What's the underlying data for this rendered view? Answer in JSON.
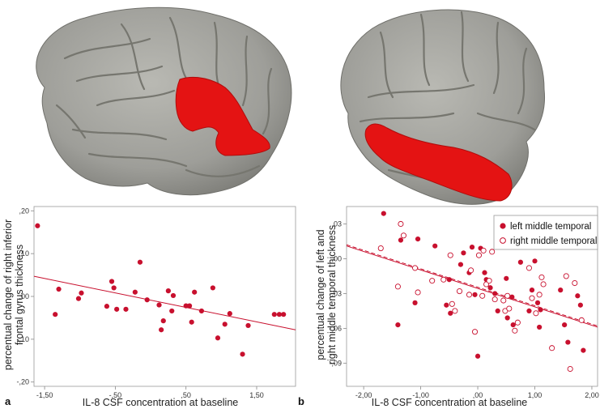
{
  "colors": {
    "accent": "#c8102e",
    "brain": "#9c9c97",
    "region": "#e41313"
  },
  "figure": {
    "panel_a_label": "a",
    "panel_b_label": "b",
    "brain_left_icon": "brain-lateral-right-hemisphere-inferior-frontal-highlight",
    "brain_right_icon": "brain-lateral-left-hemisphere-middle-temporal-highlight"
  },
  "chart_data": [
    {
      "type": "scatter",
      "panel": "a",
      "xlabel": "IL-8 CSF concentration at baseline",
      "ylabel": "percentual change of right inferior frontal gyrus thickness",
      "xlim": [
        -1.65,
        2.05
      ],
      "ylim": [
        -0.21,
        0.21
      ],
      "xticks": [
        -1.5,
        -0.5,
        0.5,
        1.5
      ],
      "xtick_labels": [
        "-1,50",
        "-,50",
        ",50",
        "1,50"
      ],
      "yticks": [
        0.2,
        0.1,
        0.0,
        -0.1,
        -0.2
      ],
      "ytick_labels": [
        ",20",
        ",10",
        ",00",
        "-,10",
        "-,20"
      ],
      "series": [
        {
          "marker": "filled",
          "x": [
            -1.6,
            -1.35,
            -1.3,
            -1.02,
            -0.98,
            -0.62,
            -0.55,
            -0.52,
            -0.48,
            -0.35,
            -0.22,
            -0.15,
            -0.05,
            0.12,
            0.15,
            0.18,
            0.25,
            0.3,
            0.32,
            0.5,
            0.55,
            0.58,
            0.62,
            0.72,
            0.88,
            0.95,
            1.05,
            1.12,
            1.3,
            1.38,
            1.75,
            1.82,
            1.88
          ],
          "y": [
            0.165,
            -0.042,
            0.017,
            -0.005,
            0.008,
            -0.023,
            0.035,
            0.02,
            -0.03,
            -0.03,
            0.01,
            0.08,
            -0.008,
            -0.02,
            -0.078,
            -0.057,
            0.013,
            -0.034,
            0.002,
            -0.022,
            -0.022,
            -0.06,
            0.01,
            -0.034,
            0.02,
            -0.097,
            -0.065,
            -0.04,
            -0.135,
            -0.068,
            -0.042,
            -0.042,
            -0.042
          ]
        }
      ],
      "fit_line": {
        "x": [
          -1.65,
          2.05
        ],
        "y": [
          0.047,
          -0.078
        ]
      }
    },
    {
      "type": "scatter",
      "panel": "b",
      "xlabel": "IL-8 CSF concentration at baseline",
      "ylabel": "percentual change of left and right middle temporal thickness",
      "xlim": [
        -2.3,
        2.1
      ],
      "ylim": [
        -0.11,
        0.045
      ],
      "xticks": [
        -2.0,
        -1.0,
        0.0,
        1.0,
        2.0
      ],
      "xtick_labels": [
        "-2,00",
        "-1,00",
        ",00",
        "1,00",
        "2,00"
      ],
      "yticks": [
        0.03,
        0.0,
        -0.03,
        -0.06,
        -0.09
      ],
      "ytick_labels": [
        ",03",
        ",00",
        "-,03",
        "-,06",
        "-,09"
      ],
      "legend": {
        "position": "top-right"
      },
      "series": [
        {
          "name": "left middle temporal",
          "marker": "filled",
          "x": [
            -1.65,
            -1.4,
            -1.35,
            -1.1,
            -1.05,
            -0.75,
            -0.55,
            -0.5,
            -0.48,
            -0.3,
            -0.25,
            -0.15,
            -0.1,
            -0.05,
            0.0,
            0.05,
            0.12,
            0.15,
            0.22,
            0.3,
            0.35,
            0.5,
            0.52,
            0.6,
            0.62,
            0.75,
            0.9,
            0.95,
            1.0,
            1.05,
            1.08,
            1.1,
            1.45,
            1.52,
            1.58,
            1.75,
            1.8,
            1.85
          ],
          "y": [
            0.039,
            -0.057,
            0.016,
            -0.038,
            0.017,
            0.011,
            -0.04,
            -0.018,
            -0.047,
            -0.005,
            0.005,
            -0.012,
            0.01,
            -0.031,
            -0.084,
            0.009,
            -0.012,
            -0.018,
            -0.025,
            -0.03,
            -0.045,
            -0.017,
            -0.051,
            -0.033,
            -0.057,
            -0.003,
            -0.045,
            -0.027,
            -0.002,
            -0.038,
            -0.059,
            -0.044,
            -0.027,
            -0.057,
            -0.072,
            -0.032,
            -0.04,
            -0.079
          ]
        },
        {
          "name": "right middle temporal",
          "marker": "open",
          "x": [
            -1.7,
            -1.4,
            -1.35,
            -1.3,
            -1.1,
            -1.05,
            -0.8,
            -0.6,
            -0.48,
            -0.45,
            -0.4,
            -0.32,
            -0.15,
            -0.12,
            -0.05,
            0.02,
            0.08,
            0.1,
            0.15,
            0.2,
            0.25,
            0.3,
            0.45,
            0.48,
            0.52,
            0.55,
            0.65,
            0.7,
            0.9,
            0.95,
            1.02,
            1.08,
            1.12,
            1.15,
            1.3,
            1.55,
            1.62,
            1.7,
            1.82
          ],
          "y": [
            0.009,
            -0.024,
            0.03,
            0.02,
            -0.008,
            -0.029,
            -0.019,
            -0.018,
            0.003,
            -0.039,
            -0.045,
            -0.028,
            -0.031,
            -0.01,
            -0.063,
            0.003,
            -0.032,
            0.007,
            -0.022,
            -0.019,
            0.006,
            -0.035,
            -0.036,
            -0.045,
            -0.032,
            -0.043,
            -0.062,
            -0.055,
            -0.008,
            -0.034,
            -0.047,
            -0.031,
            -0.016,
            -0.022,
            -0.077,
            -0.015,
            -0.095,
            -0.021,
            -0.053
          ]
        }
      ],
      "fit_lines": [
        {
          "style": "solid",
          "x": [
            -2.3,
            2.1
          ],
          "y": [
            0.011,
            -0.059
          ]
        },
        {
          "style": "dashed",
          "x": [
            -2.3,
            2.1
          ],
          "y": [
            0.012,
            -0.058
          ]
        }
      ]
    }
  ]
}
